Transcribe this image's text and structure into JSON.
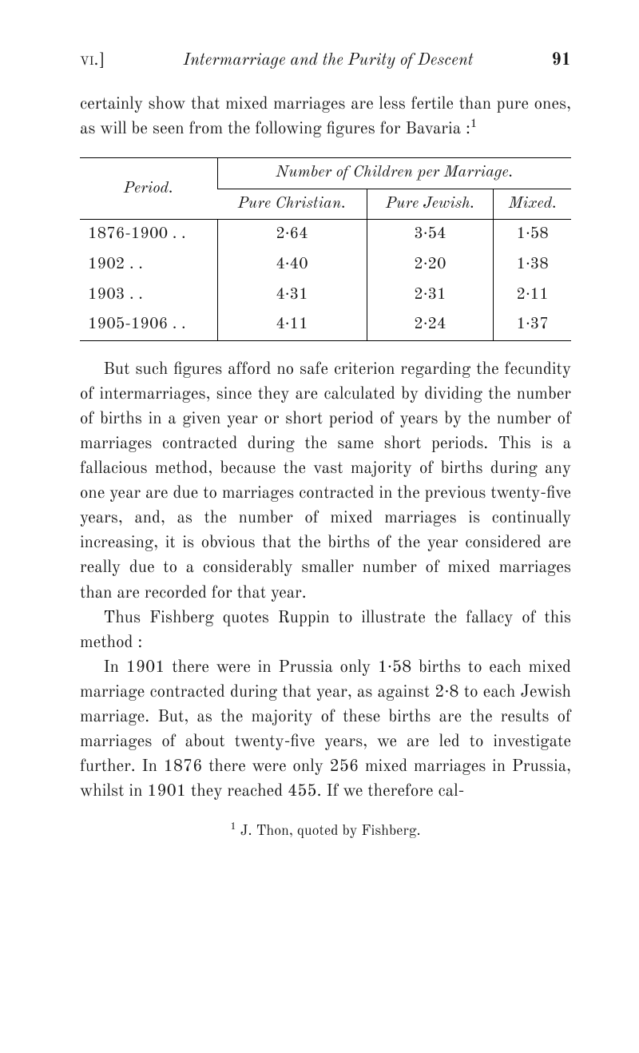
{
  "header": {
    "section_label": "vi.]",
    "title": "Intermarriage and the Purity of Descent",
    "page_number": "91"
  },
  "intro": {
    "text": "certainly show that mixed marriages are less fertile than pure ones, as will be seen from the following figures for Bavaria :"
  },
  "table": {
    "period_label": "Period.",
    "group_label": "Number of Children per Marriage.",
    "columns": [
      "Pure Christian.",
      "Pure Jewish.",
      "Mixed."
    ],
    "rows": [
      {
        "period": "1876-1900 . .",
        "values": [
          "2·64",
          "3·54",
          "1·58"
        ]
      },
      {
        "period": "1902           . .",
        "values": [
          "4·40",
          "2·20",
          "1·38"
        ]
      },
      {
        "period": "1903           . .",
        "values": [
          "4·31",
          "2·31",
          "2·11"
        ]
      },
      {
        "period": "1905-1906 . .",
        "values": [
          "4·11",
          "2·24",
          "1·37"
        ]
      }
    ]
  },
  "body": {
    "p1": "But such figures afford no safe criterion regarding the fecundity of intermarriages, since they are calculated by dividing the number of births in a given year or short period of years by the number of marriages contracted during the same short periods. This is a fallacious method, because the vast majority of births during any one year are due to marriages contracted in the previous twenty-five years, and, as the number of mixed marriages is continually increasing, it is obvious that the births of the year considered are really due to a considerably smaller number of mixed marriages than are recorded for that year.",
    "p2": "Thus Fishberg quotes Ruppin to illustrate the fallacy of this method :",
    "p3": "In 1901 there were in Prussia only 1·58 births to each mixed marriage contracted during that year, as against 2·8 to each Jewish marriage. But, as the majority of these births are the results of marriages of about twenty-five years, we are led to investigate further. In 1876 there were only 256 mixed marriages in Prussia, whilst in 1901 they reached 455. If we therefore cal-"
  },
  "footnote": {
    "marker": "1",
    "text": "J. Thon, quoted by Fishberg."
  }
}
